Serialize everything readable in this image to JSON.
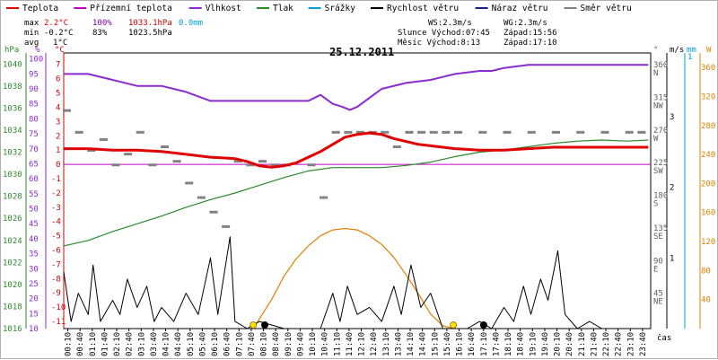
{
  "chart_data": {
    "type": "line",
    "date": "25.12.2011",
    "legend": [
      {
        "label": "Teplota",
        "color": "#e00000"
      },
      {
        "label": "Přízemní teplota",
        "color": "#c000c0"
      },
      {
        "label": "Vlhkost",
        "color": "#8a2bd0"
      },
      {
        "label": "Tlak",
        "color": "#2a8a2a"
      },
      {
        "label": "Srážky",
        "color": "#00a0d0"
      },
      {
        "label": "Rychlost větru",
        "color": "#000000"
      },
      {
        "label": "Náraz větru",
        "color": "#1c1c80"
      },
      {
        "label": "Směr větru",
        "color": "#808080"
      }
    ],
    "stats": {
      "max": {
        "label": "max",
        "temp": "2.2°C",
        "hum": "100%",
        "press": "1033.1hPa",
        "rain": "0.0mm"
      },
      "min": {
        "label": "min",
        "temp": "-0.2°C",
        "hum": "83%",
        "press": "1023.5hPa"
      },
      "avg": {
        "label": "avg",
        "temp": "1°C"
      }
    },
    "info": {
      "ws": "WS:2.3m/s",
      "wg": "WG:2.3m/s",
      "sun": "Slunce Východ:07:45",
      "sunset": "Západ:15:56",
      "moon": "Měsíc  Východ:8:13",
      "moonset": "Západ:17:10"
    },
    "axis_units": {
      "hpa": "hPa",
      "pct": "%",
      "degc": "°C",
      "deg": "°",
      "ms": "m/s",
      "mm": "mm",
      "w": "W",
      "time": "čas"
    },
    "pressure_ticks": [
      1040,
      1038,
      1036,
      1034,
      1032,
      1030,
      1028,
      1026,
      1024,
      1022,
      1020,
      1018,
      1016
    ],
    "humidity_ticks": [
      100,
      95,
      90,
      85,
      80,
      75,
      70,
      65,
      60,
      55,
      50,
      45,
      40,
      35,
      30,
      25,
      20,
      15,
      10
    ],
    "temperature_ticks": [
      7,
      6,
      5,
      4,
      3,
      2,
      1,
      0,
      -1,
      -2,
      -3,
      -4,
      -5,
      -6,
      -7,
      -8,
      -9,
      -10,
      -11
    ],
    "direction_ticks": [
      {
        "deg": "360",
        "dir": "N"
      },
      {
        "deg": "315",
        "dir": "NW"
      },
      {
        "deg": "270",
        "dir": "W"
      },
      {
        "deg": "225",
        "dir": "SW"
      },
      {
        "deg": "180",
        "dir": "S"
      },
      {
        "deg": "135",
        "dir": "SE"
      },
      {
        "deg": "90",
        "dir": "E"
      },
      {
        "deg": "45",
        "dir": "NE"
      }
    ],
    "wind_ticks": [
      "3",
      "2",
      "1"
    ],
    "rain_ticks": [
      "1"
    ],
    "solar_ticks": [
      360,
      320,
      280,
      240,
      200,
      160,
      120,
      80,
      40
    ],
    "time_labels": [
      "00:10",
      "00:40",
      "01:10",
      "01:40",
      "02:10",
      "02:40",
      "03:10",
      "03:40",
      "04:10",
      "04:40",
      "05:10",
      "05:40",
      "06:10",
      "06:40",
      "07:10",
      "07:40",
      "08:10",
      "08:40",
      "09:10",
      "09:40",
      "10:10",
      "10:40",
      "11:10",
      "11:40",
      "12:10",
      "12:40",
      "13:10",
      "13:40",
      "14:10",
      "14:40",
      "15:10",
      "15:40",
      "16:10",
      "16:40",
      "17:10",
      "17:40",
      "18:10",
      "18:40",
      "19:10",
      "19:40",
      "20:10",
      "20:40",
      "21:10",
      "21:40",
      "22:10",
      "22:40",
      "23:10",
      "23:40"
    ],
    "temperature": [
      [
        0,
        1.1
      ],
      [
        1,
        1.1
      ],
      [
        2,
        1.0
      ],
      [
        3,
        1.0
      ],
      [
        4,
        0.9
      ],
      [
        5,
        0.7
      ],
      [
        6,
        0.5
      ],
      [
        7,
        0.4
      ],
      [
        7.5,
        0.2
      ],
      [
        8,
        -0.1
      ],
      [
        8.5,
        -0.2
      ],
      [
        9,
        -0.1
      ],
      [
        9.5,
        0.1
      ],
      [
        10,
        0.5
      ],
      [
        10.5,
        0.9
      ],
      [
        11,
        1.4
      ],
      [
        11.5,
        1.9
      ],
      [
        12,
        2.1
      ],
      [
        12.5,
        2.2
      ],
      [
        13,
        2.1
      ],
      [
        13.5,
        1.8
      ],
      [
        14,
        1.6
      ],
      [
        14.5,
        1.4
      ],
      [
        15,
        1.3
      ],
      [
        15.5,
        1.2
      ],
      [
        16,
        1.1
      ],
      [
        17,
        1.0
      ],
      [
        18,
        1.0
      ],
      [
        19,
        1.1
      ],
      [
        20,
        1.2
      ],
      [
        21,
        1.2
      ],
      [
        22,
        1.2
      ],
      [
        23,
        1.2
      ],
      [
        23.9,
        1.2
      ]
    ],
    "humidity": [
      [
        0,
        95
      ],
      [
        1,
        95
      ],
      [
        2,
        93
      ],
      [
        3,
        91
      ],
      [
        4,
        91
      ],
      [
        5,
        89
      ],
      [
        6,
        86
      ],
      [
        7,
        86
      ],
      [
        8,
        86
      ],
      [
        9,
        86
      ],
      [
        10,
        86
      ],
      [
        10.5,
        88
      ],
      [
        11,
        85
      ],
      [
        11.4,
        84
      ],
      [
        11.7,
        83
      ],
      [
        12,
        84
      ],
      [
        12.5,
        87
      ],
      [
        13,
        90
      ],
      [
        14,
        92
      ],
      [
        15,
        93
      ],
      [
        15.5,
        94
      ],
      [
        16,
        95
      ],
      [
        17,
        96
      ],
      [
        17.5,
        96
      ],
      [
        18,
        97
      ],
      [
        19,
        98
      ],
      [
        20,
        98
      ],
      [
        21,
        98
      ],
      [
        22,
        98
      ],
      [
        23,
        98
      ],
      [
        23.9,
        98
      ]
    ],
    "pressure": [
      [
        0,
        1023.5
      ],
      [
        1,
        1024
      ],
      [
        2,
        1024.8
      ],
      [
        3,
        1025.5
      ],
      [
        4,
        1026.2
      ],
      [
        5,
        1027
      ],
      [
        6,
        1027.7
      ],
      [
        7,
        1028.3
      ],
      [
        8,
        1029
      ],
      [
        9,
        1029.7
      ],
      [
        10,
        1030.3
      ],
      [
        11,
        1030.6
      ],
      [
        12,
        1030.6
      ],
      [
        13,
        1030.6
      ],
      [
        14,
        1030.8
      ],
      [
        15,
        1031.1
      ],
      [
        16,
        1031.6
      ],
      [
        17,
        1032
      ],
      [
        18,
        1032.2
      ],
      [
        19,
        1032.5
      ],
      [
        20,
        1032.8
      ],
      [
        21,
        1033
      ],
      [
        22,
        1033.1
      ],
      [
        23,
        1033
      ],
      [
        23.9,
        1033.1
      ]
    ],
    "wind_speed": [
      [
        0,
        0.8
      ],
      [
        0.3,
        0.1
      ],
      [
        0.6,
        0.5
      ],
      [
        1,
        0.2
      ],
      [
        1.2,
        0.9
      ],
      [
        1.5,
        0.1
      ],
      [
        2,
        0.4
      ],
      [
        2.3,
        0.2
      ],
      [
        2.6,
        0.7
      ],
      [
        3,
        0.3
      ],
      [
        3.4,
        0.6
      ],
      [
        3.7,
        0.1
      ],
      [
        4,
        0.3
      ],
      [
        4.5,
        0.1
      ],
      [
        5,
        0.5
      ],
      [
        5.5,
        0.2
      ],
      [
        6,
        1.0
      ],
      [
        6.3,
        0.2
      ],
      [
        6.8,
        1.3
      ],
      [
        7,
        0.1
      ],
      [
        7.5,
        0
      ],
      [
        8,
        0.1
      ],
      [
        9,
        0
      ],
      [
        10,
        0
      ],
      [
        10.5,
        0
      ],
      [
        11,
        0.5
      ],
      [
        11.3,
        0.1
      ],
      [
        11.6,
        0.6
      ],
      [
        12,
        0.2
      ],
      [
        12.5,
        0.3
      ],
      [
        13,
        0.1
      ],
      [
        13.5,
        0.6
      ],
      [
        13.8,
        0.2
      ],
      [
        14.2,
        0.9
      ],
      [
        14.6,
        0.3
      ],
      [
        15,
        0.5
      ],
      [
        15.5,
        0
      ],
      [
        16,
        0
      ],
      [
        16.5,
        0
      ],
      [
        17,
        0.1
      ],
      [
        17.5,
        0
      ],
      [
        18,
        0.3
      ],
      [
        18.4,
        0.1
      ],
      [
        18.8,
        0.6
      ],
      [
        19.1,
        0.2
      ],
      [
        19.5,
        0.7
      ],
      [
        19.8,
        0.4
      ],
      [
        20.2,
        1.1
      ],
      [
        20.5,
        0.2
      ],
      [
        21,
        0
      ],
      [
        21.5,
        0.1
      ],
      [
        22,
        0
      ],
      [
        23,
        0
      ],
      [
        23.9,
        0
      ]
    ],
    "solar": [
      [
        7.75,
        0
      ],
      [
        8.5,
        40
      ],
      [
        9,
        72
      ],
      [
        9.5,
        96
      ],
      [
        10,
        114
      ],
      [
        10.5,
        128
      ],
      [
        11,
        136
      ],
      [
        11.5,
        138
      ],
      [
        12,
        136
      ],
      [
        12.5,
        128
      ],
      [
        13,
        116
      ],
      [
        13.5,
        98
      ],
      [
        14,
        74
      ],
      [
        14.5,
        48
      ],
      [
        15,
        20
      ],
      [
        15.5,
        4
      ],
      [
        15.93,
        0
      ]
    ],
    "wind_dir_sample": [
      [
        0,
        300
      ],
      [
        0.5,
        270
      ],
      [
        1,
        245
      ],
      [
        1.5,
        260
      ],
      [
        2,
        225
      ],
      [
        2.5,
        240
      ],
      [
        3,
        270
      ],
      [
        3.5,
        225
      ],
      [
        4,
        250
      ],
      [
        4.5,
        230
      ],
      [
        5,
        200
      ],
      [
        5.5,
        180
      ],
      [
        6,
        160
      ],
      [
        6.5,
        140
      ],
      [
        7,
        230
      ],
      [
        7.5,
        225
      ],
      [
        8,
        230
      ],
      [
        8.5,
        225
      ],
      [
        9,
        225
      ],
      [
        10,
        225
      ],
      [
        10.5,
        180
      ],
      [
        11,
        270
      ],
      [
        11.5,
        270
      ],
      [
        12,
        270
      ],
      [
        12.5,
        270
      ],
      [
        13,
        270
      ],
      [
        13.5,
        250
      ],
      [
        14,
        270
      ],
      [
        14.5,
        270
      ],
      [
        15,
        270
      ],
      [
        15.5,
        270
      ],
      [
        16,
        270
      ],
      [
        17,
        270
      ],
      [
        18,
        270
      ],
      [
        19,
        270
      ],
      [
        20,
        270
      ],
      [
        21,
        270
      ],
      [
        22,
        270
      ],
      [
        23,
        270
      ],
      [
        23.5,
        270
      ]
    ]
  }
}
